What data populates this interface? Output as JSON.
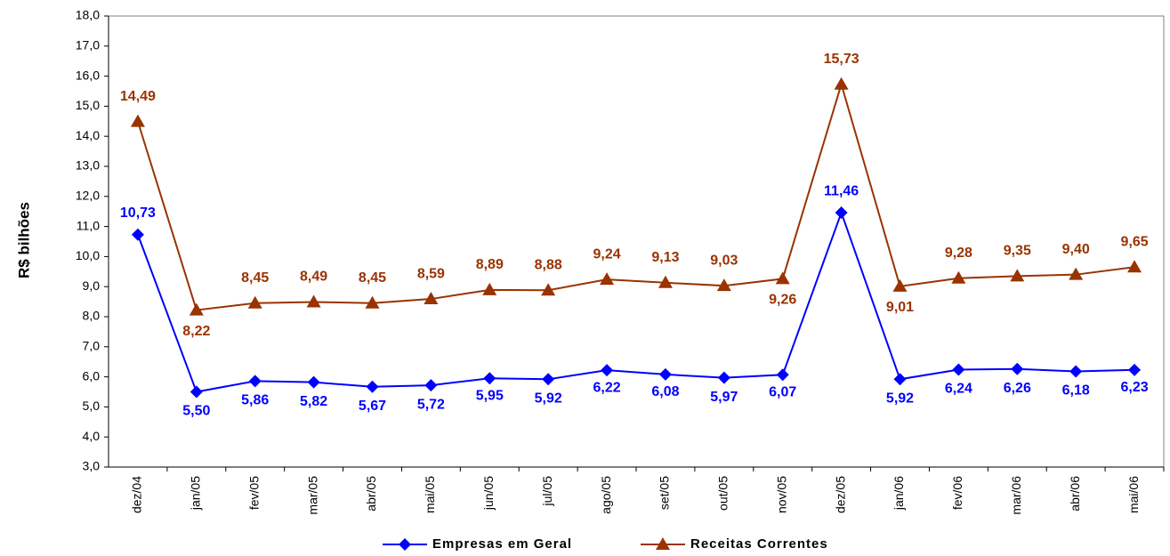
{
  "chart_data": {
    "type": "line",
    "y_label": "R$ bilhões",
    "categories": [
      "dez/04",
      "jan/05",
      "fev/05",
      "mar/05",
      "abr/05",
      "mai/05",
      "jun/05",
      "jul/05",
      "ago/05",
      "set/05",
      "out/05",
      "nov/05",
      "dez/05",
      "jan/06",
      "fev/06",
      "mar/06",
      "abr/06",
      "mai/06"
    ],
    "series": [
      {
        "name": "Empresas em Geral",
        "color": "#0000ff",
        "marker": "diamond",
        "values": [
          10.73,
          5.5,
          5.86,
          5.82,
          5.67,
          5.72,
          5.95,
          5.92,
          6.22,
          6.08,
          5.97,
          6.07,
          11.46,
          5.92,
          6.24,
          6.26,
          6.18,
          6.23
        ],
        "value_labels": [
          "10,73",
          "5,50",
          "5,86",
          "5,82",
          "5,67",
          "5,72",
          "5,95",
          "5,92",
          "6,22",
          "6,08",
          "5,97",
          "6,07",
          "11,46",
          "5,92",
          "6,24",
          "6,26",
          "6,18",
          "6,23"
        ]
      },
      {
        "name": "Receitas Correntes",
        "color": "#993300",
        "marker": "triangle",
        "values": [
          14.49,
          8.22,
          8.45,
          8.49,
          8.45,
          8.59,
          8.89,
          8.88,
          9.24,
          9.13,
          9.03,
          9.26,
          15.73,
          9.01,
          9.28,
          9.35,
          9.4,
          9.65
        ],
        "value_labels": [
          "14,49",
          "8,22",
          "8,45",
          "8,49",
          "8,45",
          "8,59",
          "8,89",
          "8,88",
          "9,24",
          "9,13",
          "9,03",
          "9,26",
          "15,73",
          "9,01",
          "9,28",
          "9,35",
          "9,40",
          "9,65"
        ]
      }
    ],
    "ylim": [
      3,
      18
    ],
    "yticks": [
      {
        "value": 3,
        "label": "3,0"
      },
      {
        "value": 4,
        "label": "4,0"
      },
      {
        "value": 5,
        "label": "5,0"
      },
      {
        "value": 6,
        "label": "6,0"
      },
      {
        "value": 7,
        "label": "7,0"
      },
      {
        "value": 8,
        "label": "8,0"
      },
      {
        "value": 9,
        "label": "9,0"
      },
      {
        "value": 10,
        "label": "10,0"
      },
      {
        "value": 11,
        "label": "11,0"
      },
      {
        "value": 12,
        "label": "12,0"
      },
      {
        "value": 13,
        "label": "13,0"
      },
      {
        "value": 14,
        "label": "14,0"
      },
      {
        "value": 15,
        "label": "15,0"
      },
      {
        "value": 16,
        "label": "16,0"
      },
      {
        "value": 17,
        "label": "17,0"
      },
      {
        "value": 18,
        "label": "18,0"
      }
    ]
  }
}
